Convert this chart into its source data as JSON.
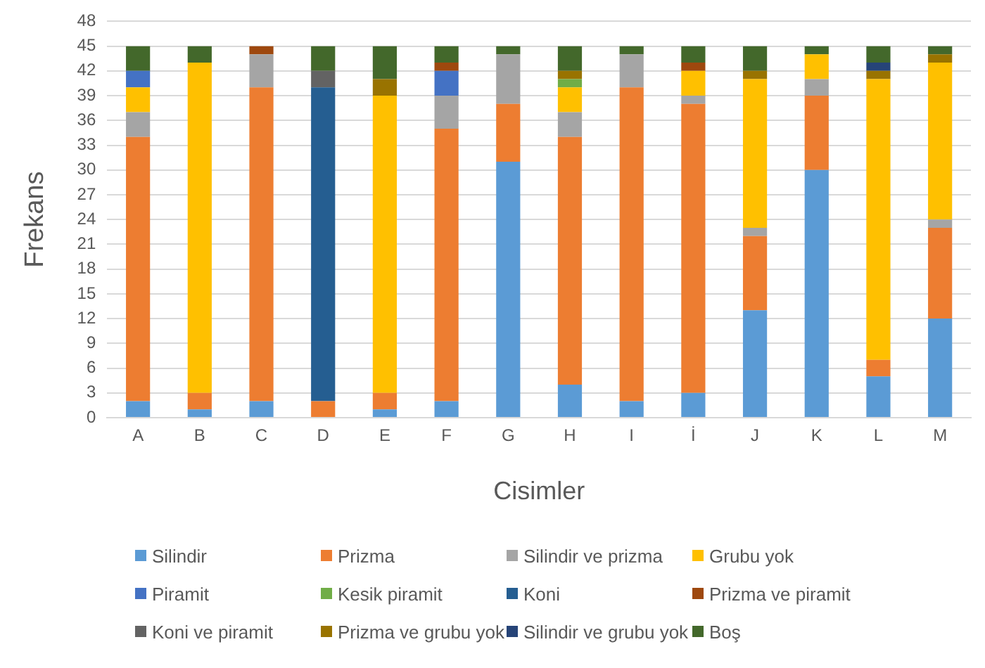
{
  "chart_data": {
    "type": "bar",
    "stacked": true,
    "xlabel": "Cisimler",
    "ylabel": "Frekans",
    "categories": [
      "A",
      "B",
      "C",
      "D",
      "E",
      "F",
      "G",
      "H",
      "I",
      "İ",
      "J",
      "K",
      "L",
      "M"
    ],
    "ylim": [
      0,
      48
    ],
    "yticks": [
      0,
      3,
      6,
      9,
      12,
      15,
      18,
      21,
      24,
      27,
      30,
      33,
      36,
      39,
      42,
      45,
      48
    ],
    "grid": "y",
    "legend": "bottom",
    "series": [
      {
        "name": "Silindir",
        "color": "#5b9bd5",
        "values": [
          2,
          1,
          2,
          0,
          1,
          2,
          31,
          4,
          2,
          3,
          13,
          30,
          5,
          12
        ]
      },
      {
        "name": "Prizma",
        "color": "#ed7d31",
        "values": [
          32,
          2,
          38,
          2,
          2,
          33,
          7,
          30,
          38,
          35,
          9,
          9,
          2,
          11
        ]
      },
      {
        "name": "Silindir ve prizma",
        "color": "#a5a5a5",
        "values": [
          3,
          0,
          4,
          0,
          0,
          4,
          6,
          3,
          4,
          1,
          1,
          2,
          0,
          1
        ]
      },
      {
        "name": "Grubu yok",
        "color": "#ffc000",
        "values": [
          3,
          40,
          0,
          0,
          36,
          0,
          0,
          3,
          0,
          3,
          18,
          3,
          34,
          19
        ]
      },
      {
        "name": "Piramit",
        "color": "#4472c4",
        "values": [
          2,
          0,
          0,
          0,
          0,
          3,
          0,
          0,
          0,
          0,
          0,
          0,
          0,
          0
        ]
      },
      {
        "name": "Kesik piramit",
        "color": "#70ad47",
        "values": [
          0,
          0,
          0,
          0,
          0,
          0,
          0,
          1,
          0,
          0,
          0,
          0,
          0,
          0
        ]
      },
      {
        "name": "Koni",
        "color": "#255e91",
        "values": [
          0,
          0,
          0,
          38,
          0,
          0,
          0,
          0,
          0,
          0,
          0,
          0,
          0,
          0
        ]
      },
      {
        "name": "Prizma ve piramit",
        "color": "#9e480e",
        "values": [
          0,
          0,
          1,
          0,
          0,
          1,
          0,
          0,
          0,
          1,
          0,
          0,
          0,
          0
        ]
      },
      {
        "name": "Koni ve piramit",
        "color": "#636363",
        "values": [
          0,
          0,
          0,
          2,
          0,
          0,
          0,
          0,
          0,
          0,
          0,
          0,
          0,
          0
        ]
      },
      {
        "name": "Prizma ve grubu yok",
        "color": "#997300",
        "values": [
          0,
          0,
          0,
          0,
          2,
          0,
          0,
          1,
          0,
          0,
          1,
          0,
          1,
          1
        ]
      },
      {
        "name": "Silindir ve grubu yok",
        "color": "#264478",
        "values": [
          0,
          0,
          0,
          0,
          0,
          0,
          0,
          0,
          0,
          0,
          0,
          0,
          1,
          0
        ]
      },
      {
        "name": "Boş",
        "color": "#43682b",
        "values": [
          3,
          2,
          0,
          3,
          4,
          2,
          1,
          3,
          1,
          2,
          3,
          1,
          2,
          1
        ]
      }
    ]
  }
}
